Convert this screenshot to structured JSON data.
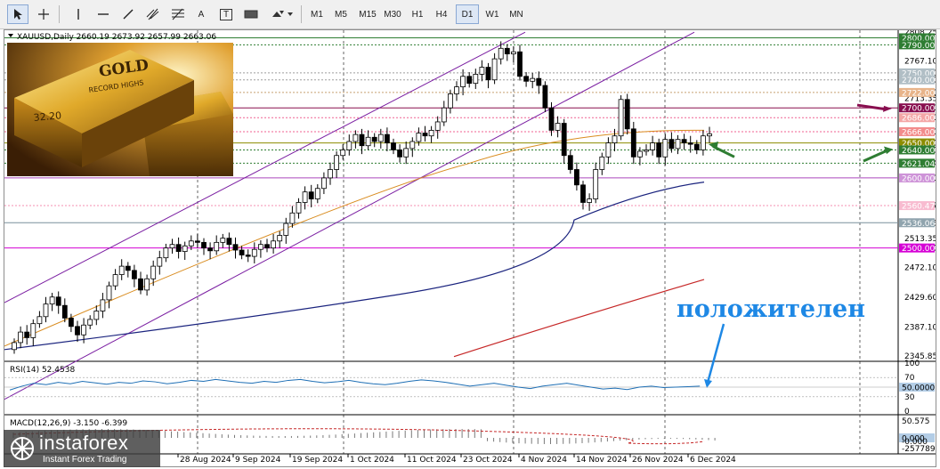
{
  "toolbar": {
    "tools": [
      "cursor-icon",
      "crosshair-icon",
      "vertical-line-icon",
      "horizontal-line-icon",
      "trendline-icon",
      "channel-icon",
      "fibonacci-icon",
      "text-tool-icon",
      "text-label-icon",
      "rectangle-icon",
      "shapes-dropdown-icon"
    ],
    "text_tool_label": "A",
    "text_label_tool_label": "T",
    "timeframes": [
      "M1",
      "M5",
      "M15",
      "M30",
      "H1",
      "H4",
      "D1",
      "W1",
      "MN"
    ],
    "active_timeframe": "D1"
  },
  "chart": {
    "header": "XAUUSD,Daily  2660.19 2673.92 2657.99 2663.06",
    "price_scale": [
      "2808.25",
      "2767.10",
      "2750.00",
      "2740.00",
      "2722.00",
      "2713.35",
      "2700.00",
      "2686.00",
      "2666.00",
      "2650.00",
      "2640.00",
      "2621.04",
      "2600.00",
      "2560.47",
      "2536.06",
      "2513.35",
      "2500.00",
      "2472.10",
      "2429.60",
      "2387.10",
      "2345.85"
    ],
    "labels": [
      {
        "text": "2800.00",
        "bg": "#2e7d32",
        "fg": "#ffffff"
      },
      {
        "text": "2790.00",
        "bg": "#2e7d32",
        "fg": "#ffffff"
      },
      {
        "text": "2750.00",
        "bg": "#b0bec5",
        "fg": "#ffffff"
      },
      {
        "text": "2740.00",
        "bg": "#b0bec5",
        "fg": "#ffffff"
      },
      {
        "text": "2722.00",
        "bg": "#e8b48a",
        "fg": "#ffffff"
      },
      {
        "text": "2700.00",
        "bg": "#880e4f",
        "fg": "#ffffff"
      },
      {
        "text": "2686.00",
        "bg": "#f4a6a6",
        "fg": "#ffffff"
      },
      {
        "text": "2666.00",
        "bg": "#f28c8c",
        "fg": "#ffffff"
      },
      {
        "text": "2650.00",
        "bg": "#8d8d00",
        "fg": "#ffffff"
      },
      {
        "text": "2640.00",
        "bg": "#2e7d32",
        "fg": "#ffffff"
      },
      {
        "text": "2621.04",
        "bg": "#2e7d32",
        "fg": "#ffffff"
      },
      {
        "text": "2600.00",
        "bg": "#ce93d8",
        "fg": "#ffffff"
      },
      {
        "text": "2560.47",
        "bg": "#f8bbd0",
        "fg": "#ffffff"
      },
      {
        "text": "2536.06",
        "bg": "#90a4ae",
        "fg": "#ffffff"
      },
      {
        "text": "2500.00",
        "bg": "#d500d5",
        "fg": "#ffffff"
      }
    ],
    "dates": [
      "28 Aug 2024",
      "9 Sep 2024",
      "19 Sep 2024",
      "1 Oct 2024",
      "11 Oct 2024",
      "23 Oct 2024",
      "4 Nov 2024",
      "14 Nov 2024",
      "26 Nov 2024",
      "6 Dec 2024"
    ],
    "overlay_text": "положителен",
    "image_text": {
      "gold": "GOLD",
      "record": "RECORD HIGHS",
      "price": "32.20"
    }
  },
  "rsi": {
    "header": "RSI(14) 52.4538",
    "scale": [
      "100",
      "70",
      "50",
      "30",
      "0"
    ],
    "value_label": "50.0000"
  },
  "macd": {
    "header": "MACD(12,26,9) -3.150 -6.399",
    "scale": [
      "50.575",
      "-0.000",
      "-257789"
    ],
    "value_label": "0.000"
  },
  "logo": {
    "brand": "instaforex",
    "tagline": "Instant Forex Trading"
  },
  "colors": {
    "bull": "#ffffff",
    "bear": "#000000",
    "ma_orange": "#d98c1f",
    "ma_navy": "#1a237e",
    "ma_red": "#c62828",
    "channel": "#7b1fa2",
    "annotation_blue": "#1e88e5",
    "arrow_purple": "#880e4f",
    "arrow_green": "#2e7d32"
  }
}
